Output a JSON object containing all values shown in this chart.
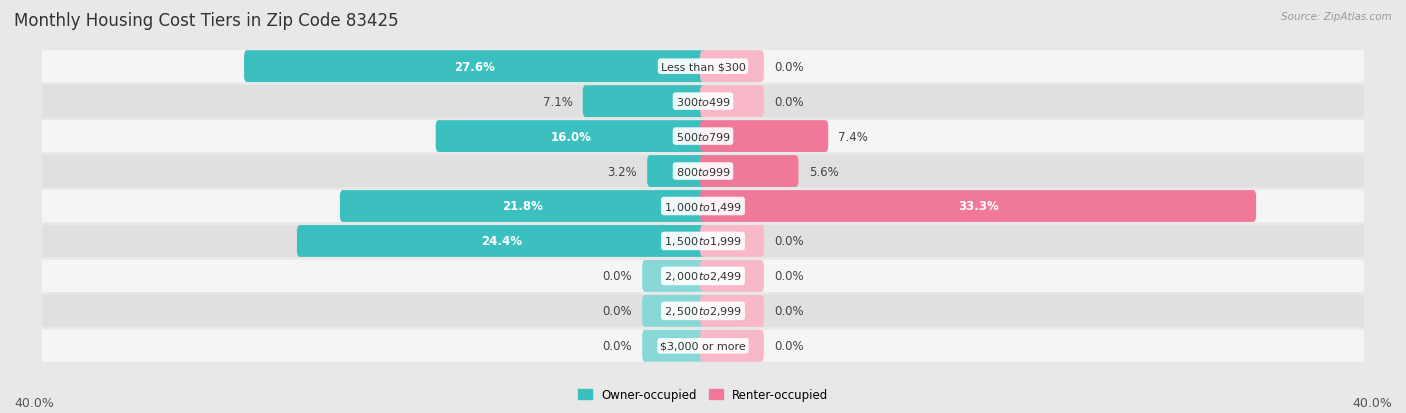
{
  "title": "Monthly Housing Cost Tiers in Zip Code 83425",
  "source": "Source: ZipAtlas.com",
  "categories": [
    "Less than $300",
    "$300 to $499",
    "$500 to $799",
    "$800 to $999",
    "$1,000 to $1,499",
    "$1,500 to $1,999",
    "$2,000 to $2,499",
    "$2,500 to $2,999",
    "$3,000 or more"
  ],
  "owner": [
    27.6,
    7.1,
    16.0,
    3.2,
    21.8,
    24.4,
    0.0,
    0.0,
    0.0
  ],
  "renter": [
    0.0,
    0.0,
    7.4,
    5.6,
    33.3,
    0.0,
    0.0,
    0.0,
    0.0
  ],
  "owner_color": "#3bbfbf",
  "owner_color_light": "#88d8d8",
  "renter_color": "#f07898",
  "renter_color_light": "#f8b8c8",
  "bg_color": "#e8e8e8",
  "row_bg_odd": "#f5f5f5",
  "row_bg_even": "#e0e0e0",
  "axis_limit": 40.0,
  "title_fontsize": 12,
  "label_fontsize": 8.5,
  "tick_fontsize": 9,
  "cat_fontsize": 8
}
